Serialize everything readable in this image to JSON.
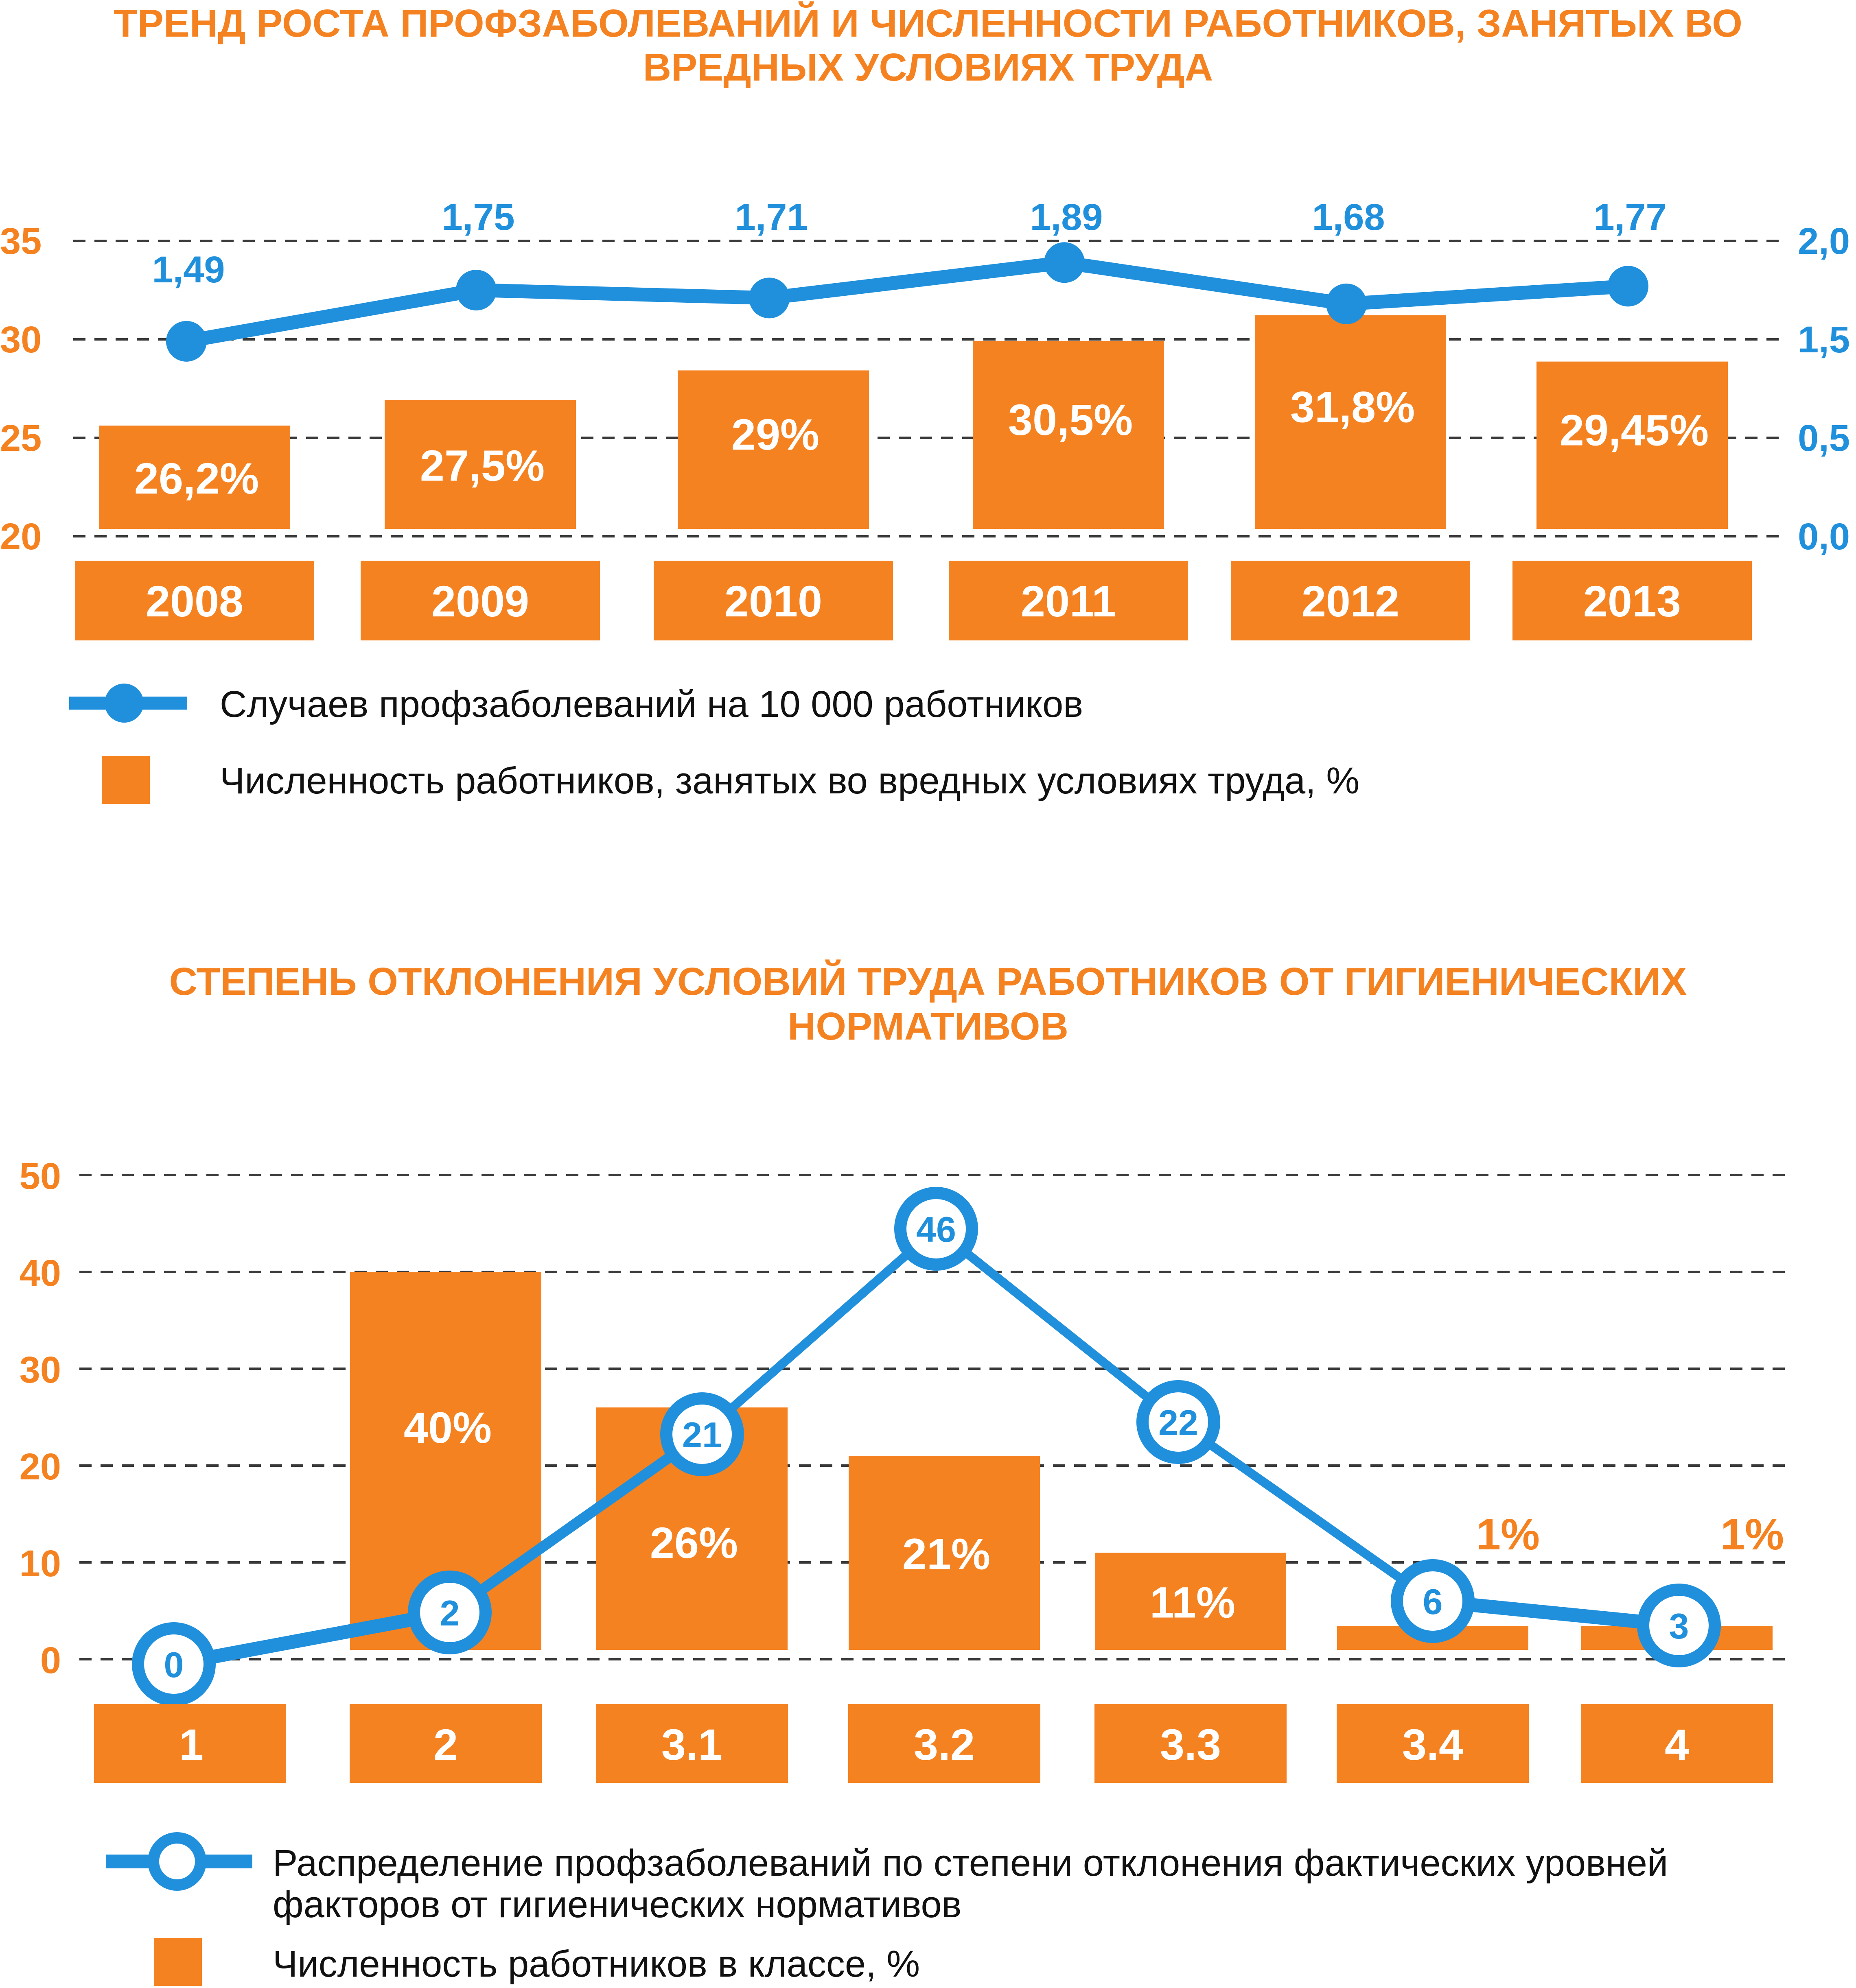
{
  "colors": {
    "orange": "#F58220",
    "blue": "#2090DC",
    "grid": "#3a3a3a",
    "text": "#111111"
  },
  "chart_data": [
    {
      "type": "bar+line",
      "title_lines": [
        "ТРЕНД РОСТА ПРОФЗАБОЛЕВАНИЙ И ЧИСЛЕННОСТИ РАБОТНИКОВ, ЗАНЯТЫХ ВО",
        "ВРЕДНЫХ УСЛОВИЯХ ТРУДА"
      ],
      "categories": [
        "2008",
        "2009",
        "2010",
        "2011",
        "2012",
        "2013"
      ],
      "left_axis": {
        "ticks": [
          "35",
          "30",
          "25",
          "20"
        ],
        "tick_values": [
          35,
          30,
          25,
          20
        ],
        "ylim": [
          20,
          35
        ]
      },
      "right_axis": {
        "ticks": [
          "2,0",
          "1,5",
          "0,5",
          "0,0"
        ]
      },
      "grid": true,
      "series": [
        {
          "name": "Численность работников, занятых во вредных условиях труда, %",
          "type": "bar",
          "axis": "left",
          "values": [
            26.2,
            27.5,
            29,
            30.5,
            31.8,
            29.45
          ],
          "labels": [
            "26,2%",
            "27,5%",
            "29%",
            "30,5%",
            "31,8%",
            "29,45%"
          ]
        },
        {
          "name": "Случаев профзаболеваний на 10 000 работников",
          "type": "line",
          "axis": "right",
          "values": [
            1.49,
            1.75,
            1.71,
            1.89,
            1.68,
            1.77
          ],
          "labels": [
            "1,49",
            "1,75",
            "1,71",
            "1,89",
            "1,68",
            "1,77"
          ]
        }
      ],
      "legend": [
        {
          "label": "Случаев профзаболеваний на 10 000 работников",
          "marker": "line-filled-circle"
        },
        {
          "label": "Численность работников, занятых во вредных условиях труда, %",
          "marker": "square"
        }
      ],
      "legend_position": "bottom-left"
    },
    {
      "type": "bar+line",
      "title_lines": [
        "СТЕПЕНЬ ОТКЛОНЕНИЯ УСЛОВИЙ ТРУДА РАБОТНИКОВ ОТ ГИГИЕНИЧЕСКИХ",
        "НОРМАТИВОВ"
      ],
      "categories": [
        "1",
        "2",
        "3.1",
        "3.2",
        "3.3",
        "3.4",
        "4"
      ],
      "left_axis": {
        "ticks": [
          "50",
          "40",
          "30",
          "20",
          "10",
          "0"
        ],
        "tick_values": [
          50,
          40,
          30,
          20,
          10,
          0
        ],
        "ylim": [
          0,
          50
        ]
      },
      "grid": true,
      "series": [
        {
          "name": "Численность работников в классе, %",
          "type": "bar",
          "values": [
            0,
            40,
            26,
            21,
            11,
            1,
            1
          ],
          "labels": [
            "",
            "40%",
            "26%",
            "21%",
            "11%",
            "1%",
            "1%"
          ]
        },
        {
          "name": "Распределение профзаболеваний по степени отклонения фактических уровней факторов от гигиенических нормативов",
          "type": "line",
          "values": [
            0,
            2,
            21,
            46,
            22,
            6,
            3
          ],
          "labels": [
            "0",
            "2",
            "21",
            "46",
            "22",
            "6",
            "3"
          ]
        }
      ],
      "legend": [
        {
          "label_lines": [
            "Распределение профзаболеваний по степени отклонения фактических уровней",
            "факторов от гигиенических нормативов"
          ],
          "marker": "line-hollow-circle"
        },
        {
          "label": "Численность работников в классе, %",
          "marker": "square"
        }
      ],
      "legend_position": "bottom-left"
    }
  ]
}
